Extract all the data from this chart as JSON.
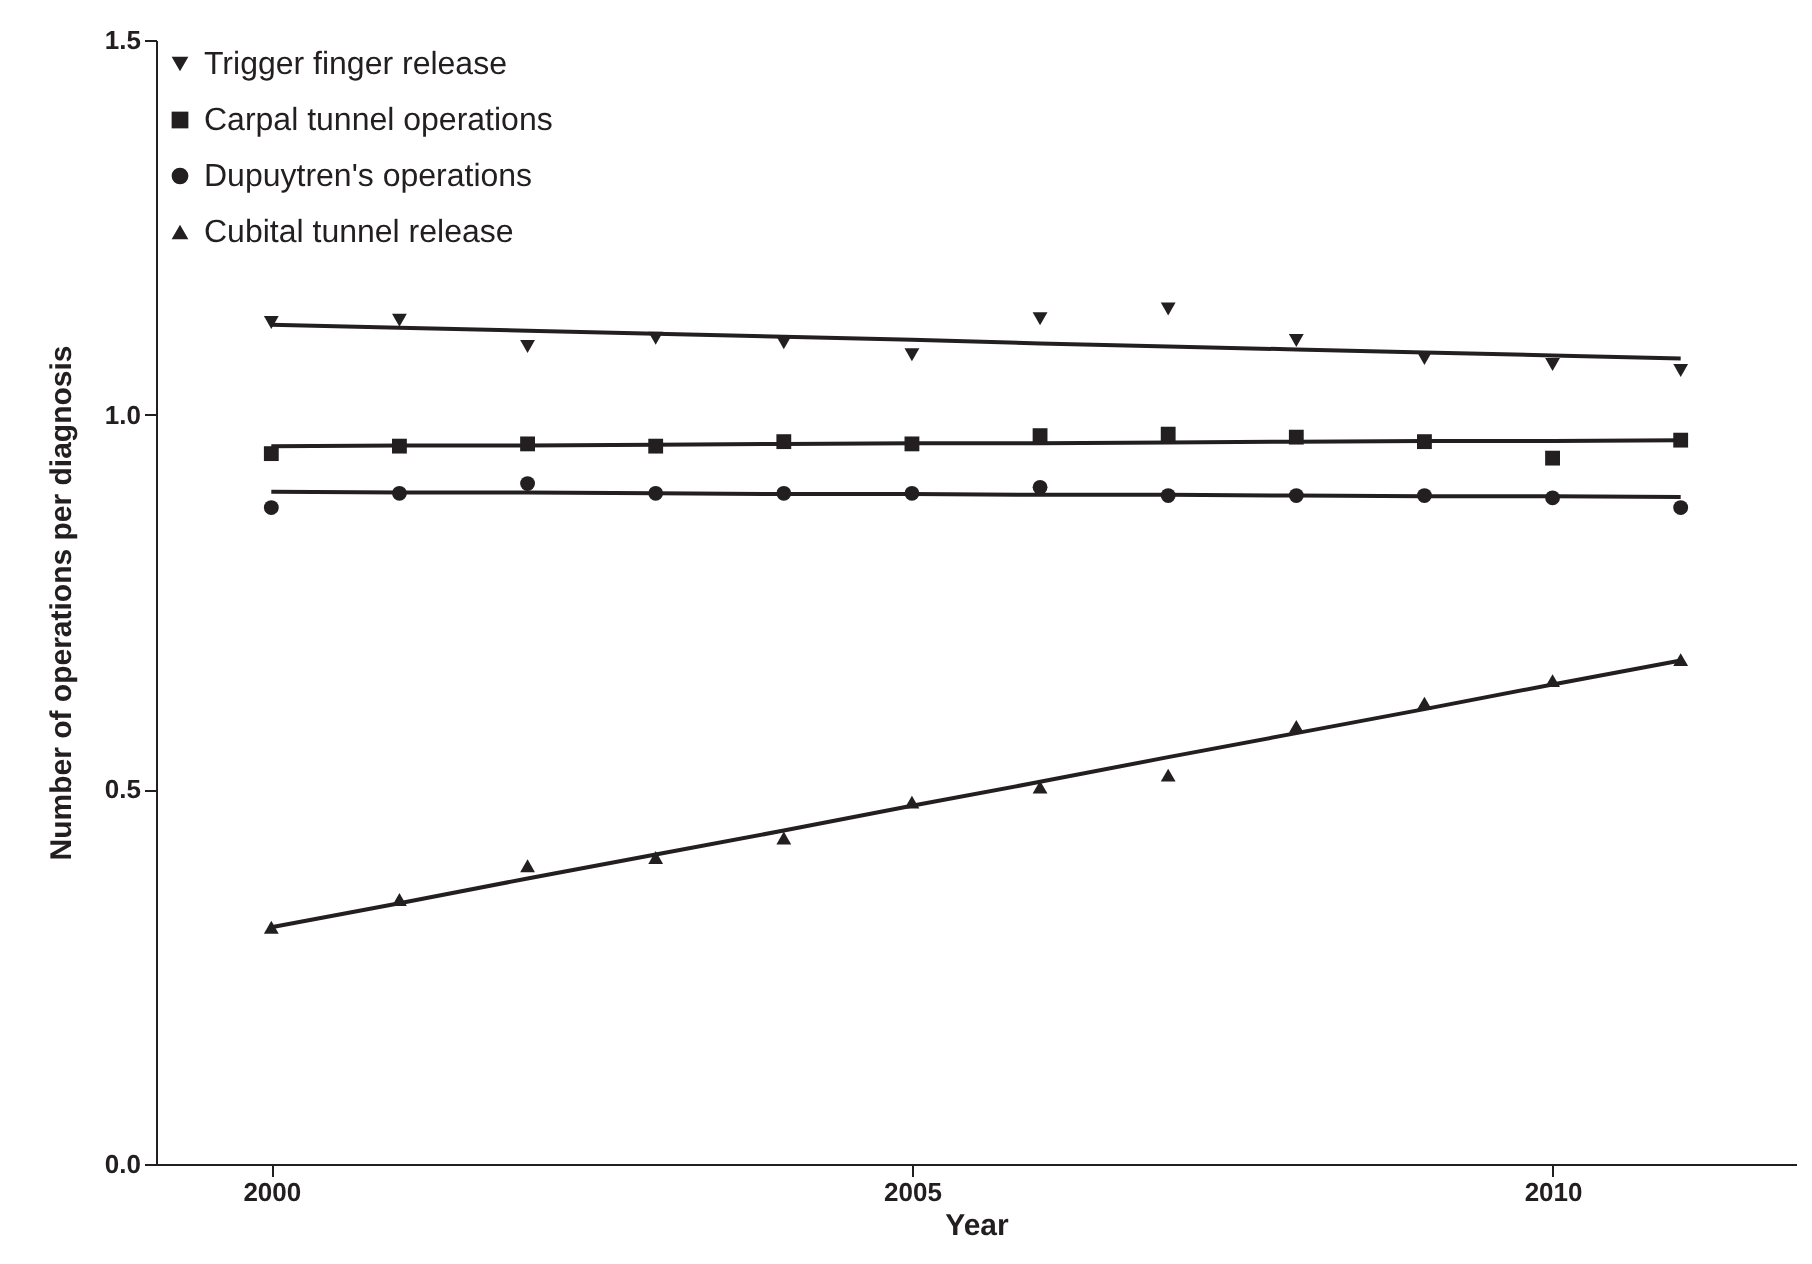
{
  "chart_data": {
    "type": "scatter",
    "xlabel": "Year",
    "ylabel": "Number of operations per diagnosis",
    "xlim": [
      1999.1,
      2011.9
    ],
    "xticks": [
      2000,
      2005,
      2010
    ],
    "ylim": [
      0,
      1.5
    ],
    "yticks": [
      {
        "value": 0,
        "label": "0.0"
      },
      0.5,
      {
        "value": 1,
        "label": "1.0"
      },
      1.5
    ],
    "x": [
      2000,
      2001,
      2002,
      2003,
      2004,
      2005,
      2006,
      2007,
      2008,
      2009,
      2010,
      2011
    ],
    "grid": false,
    "legend": "top left",
    "series": [
      {
        "name": "Trigger finger release",
        "color": "#231f20",
        "marker": "triangle-down",
        "values": [
          1.123,
          1.126,
          1.091,
          1.102,
          1.096,
          1.08,
          1.128,
          1.141,
          1.099,
          1.075,
          1.067,
          1.059
        ]
      },
      {
        "name": "Carpal tunnel operations",
        "color": "#231f20",
        "marker": "square",
        "values": [
          0.948,
          0.958,
          0.961,
          0.958,
          0.964,
          0.961,
          0.972,
          0.974,
          0.97,
          0.964,
          0.942,
          0.966
        ]
      },
      {
        "name": "Dupuytren's operations",
        "color": "#231f20",
        "marker": "circle",
        "values": [
          0.876,
          0.895,
          0.908,
          0.895,
          0.895,
          0.895,
          0.903,
          0.892,
          0.892,
          0.892,
          0.889,
          0.876
        ]
      },
      {
        "name": "Cubital tunnel release",
        "color": "#231f20",
        "marker": "triangle",
        "values": [
          0.316,
          0.353,
          0.398,
          0.409,
          0.435,
          0.483,
          0.503,
          0.519,
          0.584,
          0.615,
          0.645,
          0.673
        ]
      },
      {
        "type": "line",
        "color": "#231f20",
        "marker": "none",
        "values": [
          1.12,
          1.116,
          1.112,
          1.108,
          1.104,
          1.1,
          1.095,
          1.091,
          1.087,
          1.083,
          1.079,
          1.075
        ]
      },
      {
        "type": "line",
        "color": "#231f20",
        "marker": "none",
        "values": [
          0.958,
          0.959,
          0.959,
          0.96,
          0.961,
          0.962,
          0.962,
          0.963,
          0.964,
          0.965,
          0.965,
          0.966
        ]
      },
      {
        "type": "line",
        "color": "#231f20",
        "marker": "none",
        "values": [
          0.897,
          0.896,
          0.896,
          0.895,
          0.894,
          0.894,
          0.893,
          0.893,
          0.892,
          0.891,
          0.891,
          0.89
        ]
      },
      {
        "type": "line",
        "color": "#231f20",
        "marker": "none",
        "values": [
          0.316,
          0.348,
          0.381,
          0.413,
          0.445,
          0.478,
          0.51,
          0.543,
          0.575,
          0.607,
          0.64,
          0.672
        ]
      }
    ]
  }
}
